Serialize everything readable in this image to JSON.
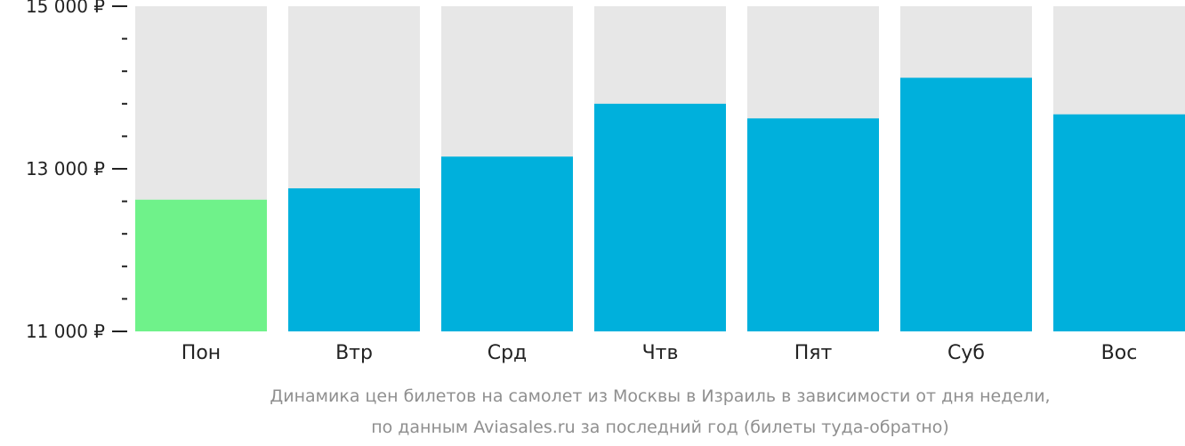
{
  "chart_data": {
    "type": "bar",
    "categories": [
      "Пон",
      "Втр",
      "Срд",
      "Чтв",
      "Пят",
      "Суб",
      "Вос"
    ],
    "values": [
      12620,
      12760,
      13150,
      13800,
      13620,
      14120,
      13670
    ],
    "highlight_index": 0,
    "ylim": [
      11000,
      15000
    ],
    "major_ticks": [
      11000,
      13000,
      15000
    ],
    "y_tick_labels": [
      "11 000 ₽",
      "13 000 ₽",
      "15 000 ₽"
    ],
    "minor_tick_step": 400,
    "caption": [
      "Динамика цен билетов на самолет из Москвы в Израиль в зависимости от дня недели,",
      "по данным Aviasales.ru за последний год (билеты туда-обратно)"
    ],
    "colors": {
      "bar": "#00b0dc",
      "bar_highlight": "#6ff28a",
      "bar_background": "#e7e7e7",
      "axis": "#222222",
      "caption": "#8f8f8f"
    }
  }
}
